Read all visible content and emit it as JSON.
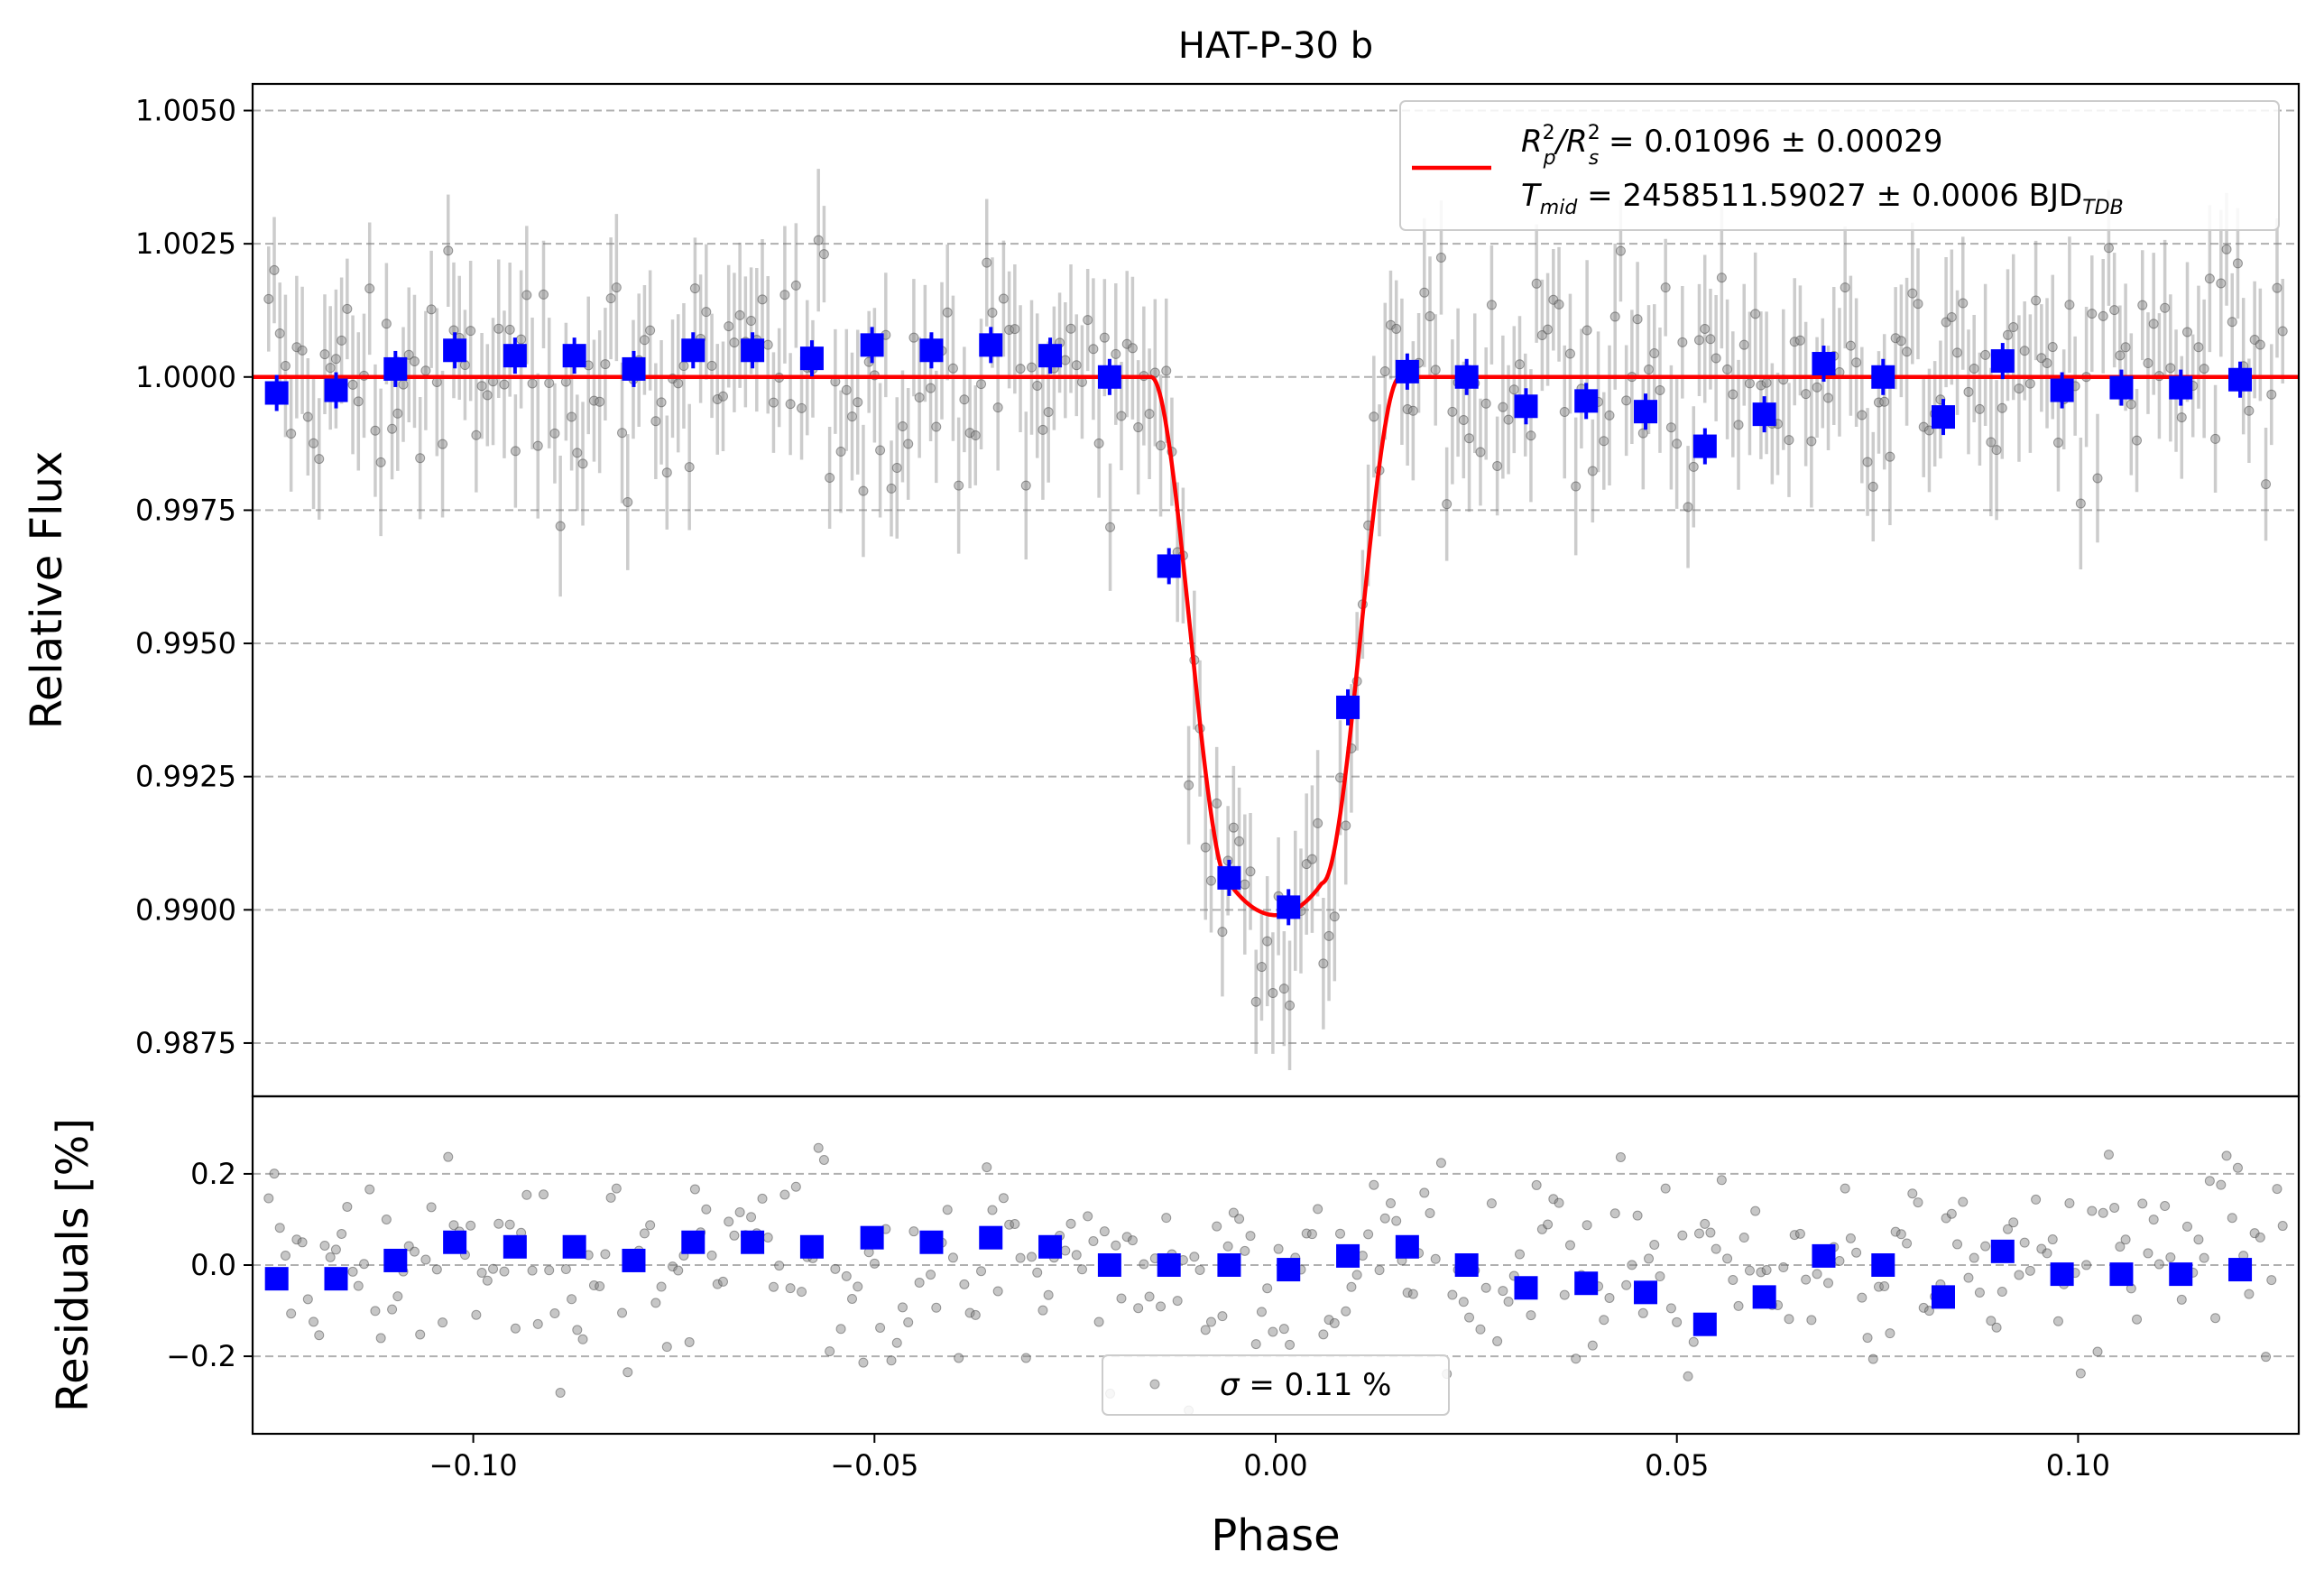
{
  "chart_data": [
    {
      "type": "scatter",
      "panel": "top",
      "title": "HAT-P-30 b",
      "xlabel": "",
      "ylabel": "Relative Flux",
      "xlim": [
        -0.1275,
        0.1275
      ],
      "ylim": [
        0.9865,
        1.0055
      ],
      "yticks": [
        0.9875,
        0.99,
        0.9925,
        0.995,
        0.9975,
        1.0,
        1.0025,
        1.005
      ],
      "yticklabels": [
        "0.9875",
        "0.9900",
        "0.9925",
        "0.9950",
        "0.9975",
        "1.0000",
        "1.0025",
        "1.0050"
      ],
      "grid": "horizontal dashed",
      "legend": {
        "placement": "top-right",
        "line1": "R²p/R²s = 0.01096 ± 0.00029",
        "line1_parts": {
          "R": "R",
          "sup1": "2",
          "sub1": "p",
          "slash": "/R",
          "sup2": "2",
          "sub2": "s",
          "rest": " = 0.01096 ± 0.00029"
        },
        "line2_parts": {
          "T": "T",
          "sub": "mid",
          "rest": " = 2458511.59027 ± 0.0006 BJD",
          "bjdsub": "TDB"
        }
      },
      "model": {
        "name": "transit model",
        "color": "#ff0000",
        "baseline": 1.0,
        "depth": 0.0101,
        "t14_half": 0.0155,
        "t23_half": 0.0058
      },
      "binned": {
        "color": "#0000ff",
        "x": [
          -0.1245,
          -0.1171,
          -0.1097,
          -0.1023,
          -0.0948,
          -0.0874,
          -0.08,
          -0.0726,
          -0.0652,
          -0.0578,
          -0.0503,
          -0.0429,
          -0.0355,
          -0.0281,
          -0.0207,
          -0.0133,
          -0.0058,
          0.0016,
          0.009,
          0.0164,
          0.0238,
          0.0312,
          0.0387,
          0.0461,
          0.0535,
          0.0609,
          0.0683,
          0.0757,
          0.0832,
          0.0906,
          0.098,
          0.1054,
          0.1128,
          0.1202
        ],
        "y": [
          0.9997,
          0.99975,
          1.00015,
          1.0005,
          1.0004,
          1.0004,
          1.00015,
          1.0005,
          1.0005,
          1.00035,
          1.0006,
          1.0005,
          1.0006,
          1.0004,
          1.0,
          0.99645,
          0.9906,
          0.99005,
          0.9938,
          1.0001,
          1.0,
          0.99945,
          0.99955,
          0.99935,
          0.9987,
          0.9993,
          1.00025,
          1.0,
          0.99925,
          1.0003,
          0.99975,
          0.9998,
          0.9998,
          0.99995
        ]
      },
      "raw": {
        "color": "#808080",
        "n": 360,
        "scatter": 0.0011
      }
    },
    {
      "type": "scatter",
      "panel": "bottom",
      "xlabel": "Phase",
      "ylabel": "Residuals [%]",
      "xlim": [
        -0.1275,
        0.1275
      ],
      "ylim": [
        -0.37,
        0.37
      ],
      "xticks": [
        -0.1,
        -0.05,
        0.0,
        0.05,
        0.1
      ],
      "xticklabels": [
        "−0.10",
        "−0.05",
        "0.00",
        "0.05",
        "0.10"
      ],
      "yticks": [
        -0.2,
        0.0,
        0.2
      ],
      "yticklabels": [
        "−0.2",
        "0.0",
        "0.2"
      ],
      "grid": "horizontal dashed",
      "legend": {
        "placement": "bottom-center",
        "sigma": "σ",
        "text": " = 0.11 %"
      },
      "binned": {
        "color": "#0000ff",
        "x": [
          -0.1245,
          -0.1171,
          -0.1097,
          -0.1023,
          -0.0948,
          -0.0874,
          -0.08,
          -0.0726,
          -0.0652,
          -0.0578,
          -0.0503,
          -0.0429,
          -0.0355,
          -0.0281,
          -0.0207,
          -0.0133,
          -0.0058,
          0.0016,
          0.009,
          0.0164,
          0.0238,
          0.0312,
          0.0387,
          0.0461,
          0.0535,
          0.0609,
          0.0683,
          0.0757,
          0.0832,
          0.0906,
          0.098,
          0.1054,
          0.1128,
          0.1202
        ],
        "y": [
          -0.03,
          -0.03,
          0.01,
          0.05,
          0.04,
          0.04,
          0.01,
          0.05,
          0.05,
          0.04,
          0.06,
          0.05,
          0.06,
          0.04,
          0.0,
          0.0,
          0.0,
          -0.01,
          0.02,
          0.04,
          0.0,
          -0.05,
          -0.04,
          -0.06,
          -0.13,
          -0.07,
          0.02,
          0.0,
          -0.07,
          0.03,
          -0.02,
          -0.02,
          -0.02,
          -0.01
        ]
      },
      "raw": {
        "color": "#808080",
        "n": 360,
        "scatter": 0.11
      }
    }
  ]
}
